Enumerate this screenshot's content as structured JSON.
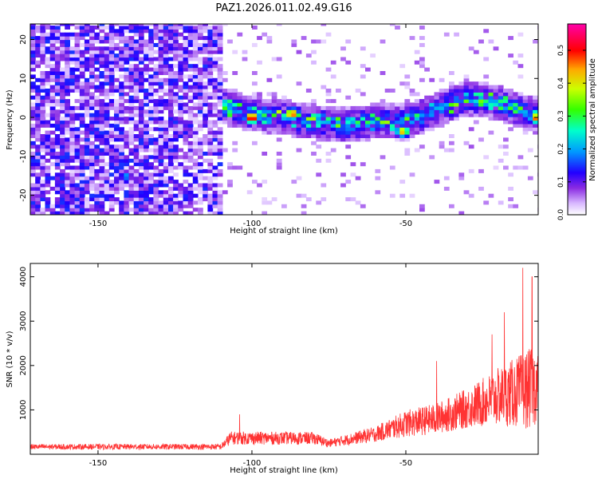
{
  "title": "PAZ1.2026.011.02.49.G16",
  "chart_data": [
    {
      "type": "heatmap",
      "name": "spectrogram",
      "xlabel": "Height of straight line (km)",
      "ylabel": "Frequency (Hz)",
      "xlim": [
        -172,
        -7
      ],
      "ylim": [
        -25,
        24
      ],
      "xticks": [
        -150,
        -100,
        -50
      ],
      "yticks": [
        -20,
        -10,
        0,
        10,
        20
      ],
      "colorbar": {
        "label": "Normalized spectral amplitude",
        "range": [
          0,
          0.58
        ],
        "ticks": [
          0.0,
          0.1,
          0.2,
          0.3,
          0.4,
          0.5
        ]
      },
      "noise_region_km": [
        -172,
        -110
      ],
      "signal_band": [
        {
          "x": -120,
          "f": 2
        },
        {
          "x": -110,
          "f": 3
        },
        {
          "x": -100,
          "f": 1
        },
        {
          "x": -90,
          "f": 0
        },
        {
          "x": -80,
          "f": -1
        },
        {
          "x": -70,
          "f": -2
        },
        {
          "x": -60,
          "f": -1
        },
        {
          "x": -50,
          "f": -1
        },
        {
          "x": -40,
          "f": 2
        },
        {
          "x": -30,
          "f": 5
        },
        {
          "x": -20,
          "f": 4
        },
        {
          "x": -10,
          "f": 1
        }
      ],
      "peaks": [
        {
          "x": -100,
          "f": 0,
          "amp": 0.58
        },
        {
          "x": -87,
          "f": 1,
          "amp": 0.52
        },
        {
          "x": -51,
          "f": -3.5,
          "amp": 0.45
        },
        {
          "x": -7.5,
          "f": 0,
          "amp": 0.5
        },
        {
          "x": -141,
          "f": -15,
          "amp": 0.2
        }
      ]
    },
    {
      "type": "line",
      "name": "snr",
      "xlabel": "Height of straight line (km)",
      "ylabel": "SNR (10 * v/v)",
      "xlim": [
        -172,
        -7
      ],
      "ylim": [
        0,
        4300
      ],
      "xticks": [
        -150,
        -100,
        -50
      ],
      "yticks": [
        1000,
        2000,
        3000,
        4000
      ],
      "color": "#ff3333",
      "envelope": [
        {
          "x": -172,
          "base": 150,
          "spread": 120
        },
        {
          "x": -110,
          "base": 150,
          "spread": 130
        },
        {
          "x": -107,
          "base": 320,
          "spread": 300
        },
        {
          "x": -80,
          "base": 320,
          "spread": 280
        },
        {
          "x": -75,
          "base": 220,
          "spread": 180
        },
        {
          "x": -60,
          "base": 400,
          "spread": 350
        },
        {
          "x": -50,
          "base": 600,
          "spread": 600
        },
        {
          "x": -40,
          "base": 700,
          "spread": 700
        },
        {
          "x": -30,
          "base": 900,
          "spread": 900
        },
        {
          "x": -20,
          "base": 1100,
          "spread": 1300
        },
        {
          "x": -10,
          "base": 1200,
          "spread": 1800
        },
        {
          "x": -7,
          "base": 1300,
          "spread": 1700
        }
      ],
      "peaks": [
        {
          "x": -12,
          "y": 4200
        },
        {
          "x": -9,
          "y": 4000
        },
        {
          "x": -18,
          "y": 3200
        },
        {
          "x": -22,
          "y": 2700
        },
        {
          "x": -40,
          "y": 2100
        },
        {
          "x": -104,
          "y": 900
        }
      ]
    }
  ]
}
